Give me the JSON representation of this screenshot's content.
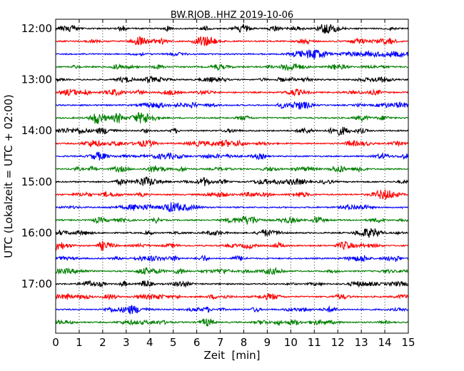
{
  "chart_data": {
    "type": "line",
    "title": "BW.RJOB..HHZ 2019-10-06",
    "xlabel": "Zeit  [min]",
    "ylabel": "UTC (Lokalzeit = UTC + 02:00)",
    "xlim": [
      0,
      15
    ],
    "x_ticks": [
      0,
      1,
      2,
      3,
      4,
      5,
      6,
      7,
      8,
      9,
      10,
      11,
      12,
      13,
      14,
      15
    ],
    "x_tick_labels": [
      "0",
      "1",
      "2",
      "3",
      "4",
      "5",
      "6",
      "7",
      "8",
      "9",
      "10",
      "11",
      "12",
      "13",
      "14",
      "15"
    ],
    "y_tick_labels": [
      "12:00",
      "13:00",
      "14:00",
      "15:00",
      "16:00",
      "17:00"
    ],
    "grid": "vertical dotted",
    "trace_interval_min": 15,
    "colors": [
      "#000000",
      "#ff0000",
      "#0000ff",
      "#007f00"
    ],
    "trace_start_times": [
      "12:00",
      "12:15",
      "12:30",
      "12:45",
      "13:00",
      "13:15",
      "13:30",
      "13:45",
      "14:00",
      "14:15",
      "14:30",
      "14:45",
      "15:00",
      "15:15",
      "15:30",
      "15:45",
      "16:00",
      "16:15",
      "16:30",
      "16:45",
      "17:00",
      "17:15",
      "17:30",
      "17:45"
    ]
  }
}
